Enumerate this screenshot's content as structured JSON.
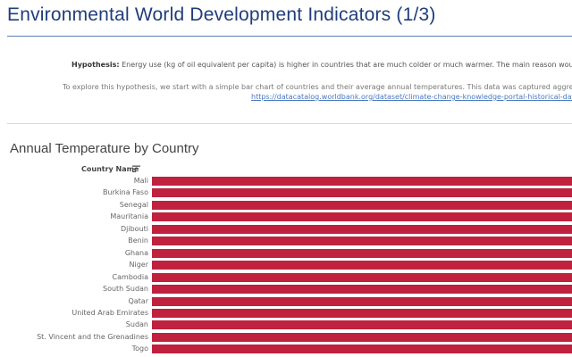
{
  "page": {
    "title": "Environmental World Development Indicators (1/3)",
    "hypothesis_label": "Hypothesis:",
    "hypothesis_text": " Energy use (kg of oil equivalent per capita) is higher in countries that are much colder or much warmer. The main reason would be th",
    "explore_text": "To explore this hypothesis, we start with a simple bar chart of countries and their average annual temperatures. This data was captured aggregated",
    "source_link": "https://datacatalog.worldbank.org/dataset/climate-change-knowledge-portal-historical-data"
  },
  "chart_data": {
    "type": "bar",
    "orientation": "horizontal",
    "title": "Annual Temperature by Country",
    "row_header": "Country Name",
    "sort": "descending",
    "categories": [
      "Mali",
      "Burkina Faso",
      "Senegal",
      "Mauritania",
      "Djibouti",
      "Benin",
      "Ghana",
      "Niger",
      "Cambodia",
      "South Sudan",
      "Qatar",
      "United Arab Emirates",
      "Sudan",
      "St. Vincent and the Grenadines",
      "Togo"
    ],
    "bar_color": "#c0213f"
  }
}
